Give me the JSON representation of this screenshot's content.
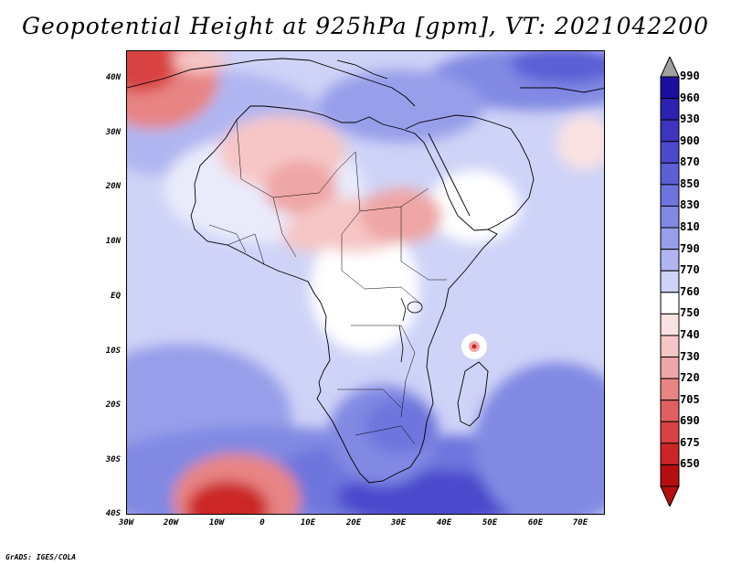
{
  "title": "Geopotential Height at 925hPa [gpm], VT: 2021042200",
  "credit": "GrADS: IGES/COLA",
  "map": {
    "region": "Africa",
    "lat_labels": [
      "40N",
      "30N",
      "20N",
      "10N",
      "EQ",
      "10S",
      "20S",
      "30S",
      "40S"
    ],
    "lon_labels": [
      "30W",
      "20W",
      "10W",
      "0",
      "10E",
      "20E",
      "30E",
      "40E",
      "50E",
      "60E",
      "70E"
    ]
  },
  "colorbar": {
    "levels": [
      "990",
      "960",
      "930",
      "900",
      "870",
      "850",
      "830",
      "810",
      "790",
      "770",
      "760",
      "750",
      "740",
      "730",
      "720",
      "705",
      "690",
      "675",
      "650"
    ],
    "colors": [
      "#1a0fa0",
      "#2a22b0",
      "#3b35c0",
      "#4b49cc",
      "#5c5fd6",
      "#6e74dd",
      "#8189e3",
      "#979fea",
      "#b0b6f1",
      "#cfd3f7",
      "#ffffff",
      "#fbe2e2",
      "#f6c6c6",
      "#efa6a6",
      "#e88484",
      "#e06060",
      "#d84242",
      "#cc2525",
      "#b50e0e"
    ],
    "cap_top_color": "#a0a0a0",
    "cap_bottom_color": "#b50e0e"
  }
}
